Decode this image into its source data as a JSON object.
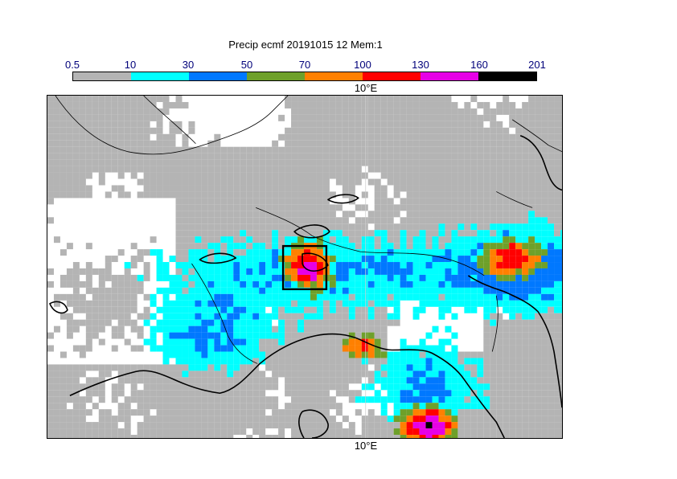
{
  "title": "Precip ecmf 20191015 12 Mem:1",
  "legend": {
    "thresholds": [
      "0.5",
      "10",
      "30",
      "50",
      "70",
      "100",
      "130",
      "160",
      "201"
    ],
    "colors": [
      "#b4b4b4",
      "#00ffff",
      "#0078ff",
      "#6ea02a",
      "#ff8000",
      "#ff0000",
      "#e600e6",
      "#000000"
    ]
  },
  "axes": {
    "top_lon_label": "10°E",
    "bottom_lon_label": "10°E"
  },
  "map": {
    "background_color": "#ffffff",
    "precip_no_data_color": "#ffffff",
    "coastline_color": "#000000",
    "highlight_box": true
  }
}
